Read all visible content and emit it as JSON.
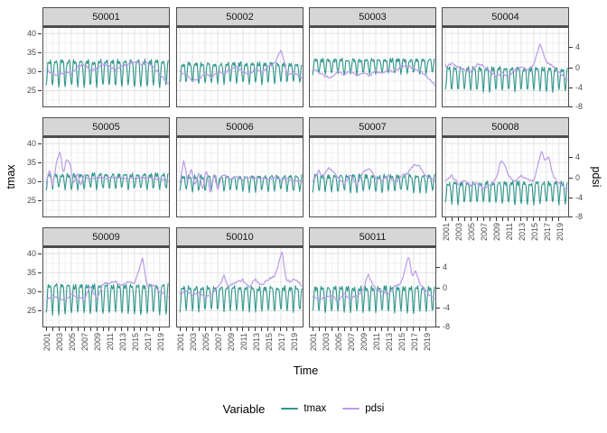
{
  "figure": {
    "axes": {
      "x_title": "Time",
      "y_left_title": "tmax",
      "y_right_title": "pdsi",
      "x_tick_labels": [
        "2001",
        "2003",
        "2005",
        "2007",
        "2009",
        "2011",
        "2013",
        "2015",
        "2017",
        "2019"
      ],
      "y_left_tick_labels": [
        "40",
        "35",
        "30",
        "25"
      ],
      "y_right_tick_labels": [
        "4",
        "0",
        "-4",
        "-8"
      ]
    },
    "legend": {
      "title": "Variable",
      "items": [
        {
          "label": "tmax",
          "color": "#2f978c"
        },
        {
          "label": "pdsi",
          "color": "#b89ce8"
        }
      ]
    },
    "colors": {
      "tmax_line": "#2f978c",
      "pdsi_line": "#b89ce8",
      "strip_background": "#d6d6d6",
      "panel_background": "#ffffff",
      "panel_border": "#4d4d4d",
      "grid_major": "#e2e2e2",
      "grid_minor": "#f1f1f1",
      "tick_text": "#4d4d4d"
    }
  },
  "chart_data": {
    "type": "line",
    "faceted": true,
    "facets": [
      "50001",
      "50002",
      "50003",
      "50004",
      "50005",
      "50006",
      "50007",
      "50008",
      "50009",
      "50010",
      "50011"
    ],
    "x_axis": {
      "label": "Time",
      "labeled_ticks": [
        2001,
        2003,
        2005,
        2007,
        2009,
        2011,
        2013,
        2015,
        2017,
        2019
      ],
      "minor_ticks_every_year": true,
      "range": [
        2001,
        2020.3
      ]
    },
    "y_left_axis": {
      "label": "tmax",
      "ticks": [
        40,
        35,
        30,
        25
      ],
      "domain": [
        20.6,
        41.7
      ]
    },
    "y_right_axis": {
      "label": "pdsi",
      "ticks": [
        4,
        0,
        -4,
        -8
      ],
      "domain": [
        -7.9,
        8.1
      ]
    },
    "sampling": "monthly",
    "series": [
      {
        "facet": "50001",
        "tmax": {
          "mean": 30.6,
          "seasonal_amp": 4.4,
          "noise": 0.5
        },
        "pdsi_keypoints": [
          [
            2001,
            -0.3
          ],
          [
            2002,
            -1.2
          ],
          [
            2003,
            -1.6
          ],
          [
            2004,
            -0.8
          ],
          [
            2005,
            -1.2
          ],
          [
            2006,
            0.2
          ],
          [
            2007,
            0.6
          ],
          [
            2008,
            -0.6
          ],
          [
            2009,
            -0.2
          ],
          [
            2010,
            0.8
          ],
          [
            2011,
            0.3
          ],
          [
            2012,
            -0.4
          ],
          [
            2013,
            0.2
          ],
          [
            2014,
            0.6
          ],
          [
            2015,
            1.1
          ],
          [
            2016,
            0.6
          ],
          [
            2017,
            0.9
          ],
          [
            2018,
            0.2
          ],
          [
            2019,
            -1.2
          ],
          [
            2020.4,
            -3.4
          ]
        ]
      },
      {
        "facet": "50002",
        "tmax": {
          "mean": 30.4,
          "seasonal_amp": 3.4,
          "noise": 0.5
        },
        "pdsi_keypoints": [
          [
            2001,
            -0.6
          ],
          [
            2002,
            -1.4
          ],
          [
            2003,
            -2.6
          ],
          [
            2004,
            -2.2
          ],
          [
            2005,
            -1.2
          ],
          [
            2006,
            -2.0
          ],
          [
            2007,
            -0.8
          ],
          [
            2008,
            -1.2
          ],
          [
            2009,
            -0.3
          ],
          [
            2010,
            0.3
          ],
          [
            2011,
            -0.8
          ],
          [
            2012,
            -1.4
          ],
          [
            2013,
            -0.2
          ],
          [
            2014,
            -0.8
          ],
          [
            2015,
            0.2
          ],
          [
            2016,
            0.8
          ],
          [
            2017,
            3.4
          ],
          [
            2017.6,
            1.0
          ],
          [
            2018,
            -1.4
          ],
          [
            2019,
            -0.8
          ],
          [
            2020.4,
            -2.2
          ]
        ]
      },
      {
        "facet": "50003",
        "tmax": {
          "mean": 31.9,
          "seasonal_amp": 2.4,
          "noise": 0.45
        },
        "pdsi_keypoints": [
          [
            2001,
            -0.2
          ],
          [
            2002,
            -1.0
          ],
          [
            2003,
            -1.6
          ],
          [
            2004,
            -1.8
          ],
          [
            2005,
            -0.8
          ],
          [
            2006,
            -1.4
          ],
          [
            2007,
            -0.8
          ],
          [
            2008,
            -1.6
          ],
          [
            2009,
            -1.0
          ],
          [
            2010,
            -1.6
          ],
          [
            2011,
            -0.6
          ],
          [
            2012,
            -1.2
          ],
          [
            2013,
            -0.4
          ],
          [
            2014,
            -0.8
          ],
          [
            2015,
            0.2
          ],
          [
            2016,
            0.4
          ],
          [
            2017,
            -0.2
          ],
          [
            2018,
            -0.6
          ],
          [
            2019,
            -1.6
          ],
          [
            2020.4,
            -3.6
          ]
        ]
      },
      {
        "facet": "50004",
        "tmax": {
          "mean": 28.9,
          "seasonal_amp": 3.9,
          "noise": 0.5
        },
        "pdsi_keypoints": [
          [
            2001,
            0.4
          ],
          [
            2002,
            0.8
          ],
          [
            2003,
            0.2
          ],
          [
            2004,
            -0.4
          ],
          [
            2005,
            -0.8
          ],
          [
            2006,
            0.6
          ],
          [
            2007,
            0.4
          ],
          [
            2008,
            -0.8
          ],
          [
            2009,
            -1.6
          ],
          [
            2010,
            -1.0
          ],
          [
            2011,
            -1.8
          ],
          [
            2012,
            -0.6
          ],
          [
            2013,
            0.2
          ],
          [
            2014,
            -0.4
          ],
          [
            2015,
            0.6
          ],
          [
            2016,
            4.8
          ],
          [
            2016.6,
            2.4
          ],
          [
            2017,
            1.2
          ],
          [
            2018,
            0.2
          ],
          [
            2019,
            -0.8
          ],
          [
            2020.4,
            -2.6
          ]
        ]
      },
      {
        "facet": "50005",
        "tmax": {
          "mean": 30.6,
          "seasonal_amp": 2.4,
          "noise": 0.5
        },
        "pdsi_keypoints": [
          [
            2001,
            -1.2
          ],
          [
            2001.5,
            1.8
          ],
          [
            2002,
            -1.8
          ],
          [
            2002.6,
            3.0
          ],
          [
            2003.2,
            5.3
          ],
          [
            2003.7,
            0.8
          ],
          [
            2004.2,
            3.8
          ],
          [
            2004.8,
            2.8
          ],
          [
            2005.3,
            -1.2
          ],
          [
            2006,
            0.8
          ],
          [
            2006.5,
            -1.6
          ],
          [
            2007,
            0.6
          ],
          [
            2008,
            -0.4
          ],
          [
            2009,
            0.2
          ],
          [
            2010,
            -0.2
          ],
          [
            2012,
            0.1
          ],
          [
            2014,
            -0.1
          ],
          [
            2016,
            0.1
          ],
          [
            2018,
            -0.2
          ],
          [
            2020.4,
            -0.4
          ]
        ]
      },
      {
        "facet": "50006",
        "tmax": {
          "mean": 30.1,
          "seasonal_amp": 2.5,
          "noise": 0.5
        },
        "pdsi_keypoints": [
          [
            2001,
            -1.4
          ],
          [
            2001.6,
            3.8
          ],
          [
            2002.2,
            -0.8
          ],
          [
            2002.8,
            1.6
          ],
          [
            2003.4,
            -1.8
          ],
          [
            2004,
            1.2
          ],
          [
            2004.6,
            -2.6
          ],
          [
            2005.2,
            1.8
          ],
          [
            2005.8,
            -3.0
          ],
          [
            2006.4,
            0.8
          ],
          [
            2007,
            -2.4
          ],
          [
            2007.6,
            0.4
          ],
          [
            2008.4,
            0.4
          ],
          [
            2009,
            -0.4
          ],
          [
            2010,
            0.2
          ],
          [
            2011,
            -0.3
          ],
          [
            2012,
            0.1
          ],
          [
            2013,
            -0.2
          ],
          [
            2014,
            0.0
          ],
          [
            2015,
            -0.3
          ],
          [
            2016,
            0.0
          ],
          [
            2017,
            -0.4
          ],
          [
            2018,
            -0.2
          ],
          [
            2020.4,
            -0.9
          ]
        ]
      },
      {
        "facet": "50007",
        "tmax": {
          "mean": 30.2,
          "seasonal_amp": 2.7,
          "noise": 0.5
        },
        "pdsi_keypoints": [
          [
            2001,
            -0.8
          ],
          [
            2002,
            1.4
          ],
          [
            2002.5,
            0.2
          ],
          [
            2003,
            1.0
          ],
          [
            2003.5,
            2.0
          ],
          [
            2004,
            1.6
          ],
          [
            2005,
            0.0
          ],
          [
            2006,
            -1.2
          ],
          [
            2007,
            0.6
          ],
          [
            2008,
            -1.6
          ],
          [
            2009,
            1.2
          ],
          [
            2010,
            1.8
          ],
          [
            2011,
            -0.2
          ],
          [
            2012,
            -0.6
          ],
          [
            2013,
            0.6
          ],
          [
            2014,
            -1.0
          ],
          [
            2015,
            0.4
          ],
          [
            2016,
            0.8
          ],
          [
            2017,
            2.6
          ],
          [
            2018,
            2.2
          ],
          [
            2019,
            0.2
          ],
          [
            2020.4,
            -0.6
          ]
        ]
      },
      {
        "facet": "50008",
        "tmax": {
          "mean": 27.9,
          "seasonal_amp": 3.6,
          "noise": 0.5
        },
        "pdsi_keypoints": [
          [
            2001,
            -0.6
          ],
          [
            2002,
            0.4
          ],
          [
            2003,
            -1.2
          ],
          [
            2004,
            -0.6
          ],
          [
            2005,
            -1.6
          ],
          [
            2006,
            -1.0
          ],
          [
            2007,
            -2.2
          ],
          [
            2008,
            -1.4
          ],
          [
            2009,
            -0.4
          ],
          [
            2009.8,
            3.4
          ],
          [
            2010.4,
            2.6
          ],
          [
            2011,
            0.4
          ],
          [
            2012,
            -0.8
          ],
          [
            2013,
            0.4
          ],
          [
            2014,
            -0.2
          ],
          [
            2015,
            -0.8
          ],
          [
            2016.2,
            5.4
          ],
          [
            2016.8,
            3.4
          ],
          [
            2017.4,
            4.4
          ],
          [
            2018,
            0.6
          ],
          [
            2019,
            -1.2
          ],
          [
            2020.4,
            -2.4
          ]
        ]
      },
      {
        "facet": "50009",
        "tmax": {
          "mean": 29.2,
          "seasonal_amp": 4.9,
          "noise": 0.5
        },
        "pdsi_keypoints": [
          [
            2001,
            -2.4
          ],
          [
            2002,
            -1.6
          ],
          [
            2003,
            -2.2
          ],
          [
            2004,
            -2.6
          ],
          [
            2005,
            -1.2
          ],
          [
            2006,
            -1.8
          ],
          [
            2007,
            -2.6
          ],
          [
            2008,
            0.4
          ],
          [
            2009,
            -2.4
          ],
          [
            2010,
            0.8
          ],
          [
            2011,
            1.0
          ],
          [
            2012,
            1.2
          ],
          [
            2013,
            0.4
          ],
          [
            2014,
            1.2
          ],
          [
            2015,
            0.6
          ],
          [
            2016.3,
            6.0
          ],
          [
            2017,
            0.2
          ],
          [
            2018,
            0.6
          ],
          [
            2019,
            -0.8
          ],
          [
            2020.4,
            -2.0
          ]
        ]
      },
      {
        "facet": "50010",
        "tmax": {
          "mean": 29.1,
          "seasonal_amp": 4.1,
          "noise": 0.5
        },
        "pdsi_keypoints": [
          [
            2001,
            -1.0
          ],
          [
            2002,
            -0.6
          ],
          [
            2003,
            -1.6
          ],
          [
            2004,
            -1.0
          ],
          [
            2005,
            -2.0
          ],
          [
            2006,
            -1.4
          ],
          [
            2007,
            0.0
          ],
          [
            2008,
            2.4
          ],
          [
            2008.6,
            0.4
          ],
          [
            2009,
            0.6
          ],
          [
            2010,
            1.2
          ],
          [
            2011,
            1.6
          ],
          [
            2012,
            0.2
          ],
          [
            2013,
            1.8
          ],
          [
            2014,
            0.4
          ],
          [
            2015,
            1.8
          ],
          [
            2016,
            2.2
          ],
          [
            2017.2,
            7.2
          ],
          [
            2017.8,
            2.0
          ],
          [
            2018.4,
            1.0
          ],
          [
            2019,
            1.8
          ],
          [
            2020.4,
            0.4
          ]
        ]
      },
      {
        "facet": "50011",
        "tmax": {
          "mean": 29.0,
          "seasonal_amp": 4.2,
          "noise": 0.5
        },
        "pdsi_keypoints": [
          [
            2001,
            -1.6
          ],
          [
            2002,
            -2.2
          ],
          [
            2003,
            -2.0
          ],
          [
            2004,
            -1.6
          ],
          [
            2005,
            -2.6
          ],
          [
            2006,
            -1.2
          ],
          [
            2007,
            -2.2
          ],
          [
            2008,
            -1.6
          ],
          [
            2009,
            -0.6
          ],
          [
            2009.8,
            2.8
          ],
          [
            2010.5,
            0.6
          ],
          [
            2011,
            -0.2
          ],
          [
            2012,
            -0.8
          ],
          [
            2013,
            -1.2
          ],
          [
            2014,
            0.4
          ],
          [
            2015,
            0.8
          ],
          [
            2016.2,
            6.2
          ],
          [
            2016.8,
            2.4
          ],
          [
            2017.3,
            3.4
          ],
          [
            2018,
            0.8
          ],
          [
            2019,
            -0.8
          ],
          [
            2020.4,
            -2.2
          ]
        ]
      }
    ]
  }
}
